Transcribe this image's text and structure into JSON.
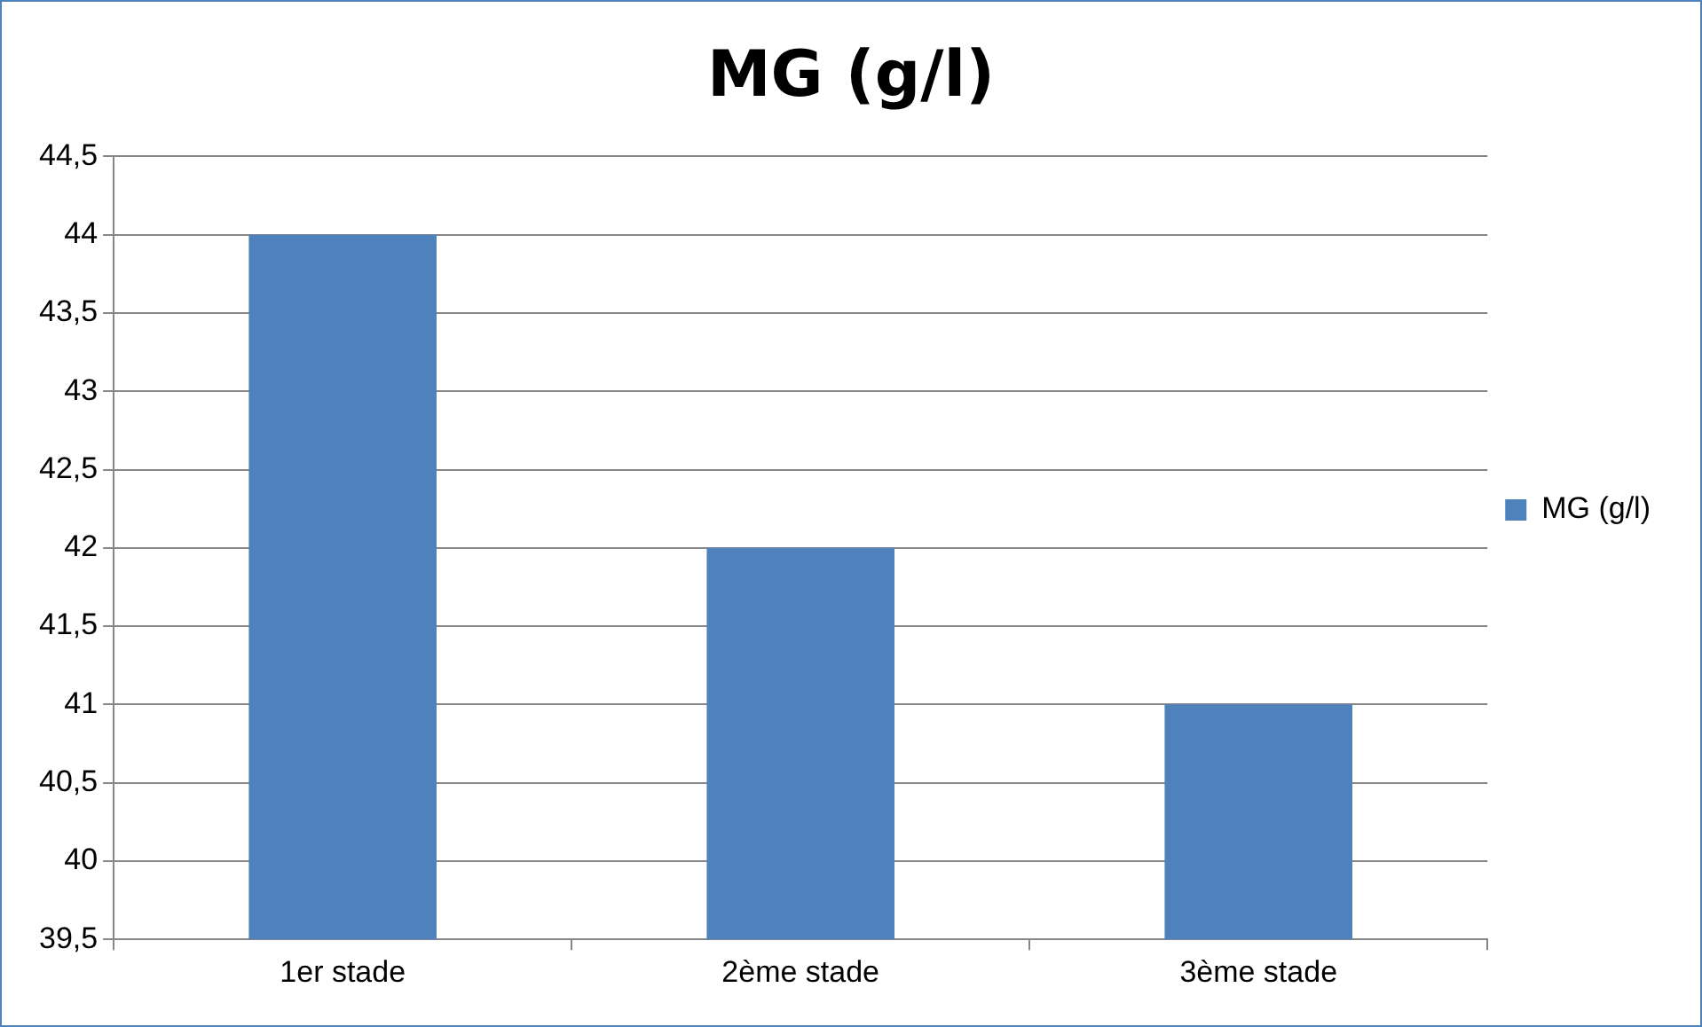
{
  "chart_data": {
    "type": "bar",
    "title": "MG (g/l)",
    "categories": [
      "1er stade",
      "2ème stade",
      "3ème stade"
    ],
    "series": [
      {
        "name": "MG (g/l)",
        "color": "#4f81bd",
        "values": [
          44,
          42,
          41
        ]
      }
    ],
    "ylim": [
      39.5,
      44.5
    ],
    "yticks": [
      {
        "value": 39.5,
        "label": "39,5"
      },
      40,
      {
        "value": 40.5,
        "label": "40,5"
      },
      41,
      {
        "value": 41.5,
        "label": "41,5"
      },
      42,
      {
        "value": 42.5,
        "label": "42,5"
      },
      43,
      {
        "value": 43.5,
        "label": "43,5"
      },
      44,
      {
        "value": 44.5,
        "label": "44,5"
      }
    ],
    "grid": "y",
    "legend": "right"
  }
}
